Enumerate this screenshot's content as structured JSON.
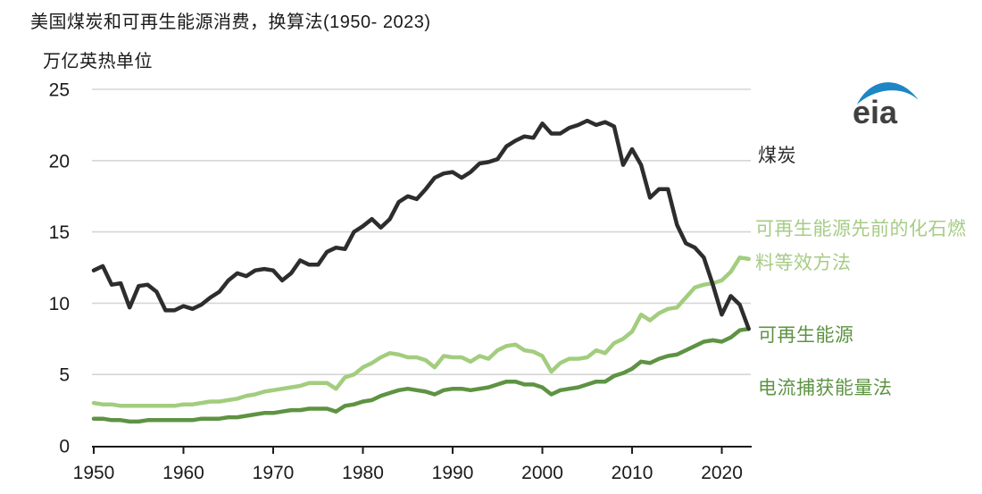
{
  "title": "美国煤炭和可再生能源消费，换算法(1950- 2023)",
  "subtitle": "万亿英热单位",
  "logo": {
    "text": "eia",
    "swoosh_color": "#1d86c4",
    "text_color": "#404040"
  },
  "annotations": {
    "coal": {
      "label": "煤炭",
      "color": "#2b2b2b"
    },
    "ffe": {
      "lines": [
        "可再生能源先前的化石燃",
        "料等效方法"
      ],
      "color": "#a6cc85"
    },
    "renewables": {
      "label": "可再生能源",
      "color": "#5d9342"
    },
    "method": {
      "label": "电流捕获能量法",
      "color": "#5d9342"
    }
  },
  "chart_data": {
    "type": "line",
    "title": "美国煤炭和可再生能源消费，换算法(1950- 2023)",
    "xlabel": "",
    "ylabel": "万亿英热单位",
    "xlim": [
      1950,
      2023
    ],
    "ylim": [
      0,
      25
    ],
    "y_ticks": [
      0,
      5,
      10,
      15,
      20,
      25
    ],
    "x_ticks": [
      1950,
      1960,
      1970,
      1980,
      1990,
      2000,
      2010,
      2020
    ],
    "grid": "horizontal",
    "legend_position": "right-annotations",
    "x": [
      1950,
      1951,
      1952,
      1953,
      1954,
      1955,
      1956,
      1957,
      1958,
      1959,
      1960,
      1961,
      1962,
      1963,
      1964,
      1965,
      1966,
      1967,
      1968,
      1969,
      1970,
      1971,
      1972,
      1973,
      1974,
      1975,
      1976,
      1977,
      1978,
      1979,
      1980,
      1981,
      1982,
      1983,
      1984,
      1985,
      1986,
      1987,
      1988,
      1989,
      1990,
      1991,
      1992,
      1993,
      1994,
      1995,
      1996,
      1997,
      1998,
      1999,
      2000,
      2001,
      2002,
      2003,
      2004,
      2005,
      2006,
      2007,
      2008,
      2009,
      2010,
      2011,
      2012,
      2013,
      2014,
      2015,
      2016,
      2017,
      2018,
      2019,
      2020,
      2021,
      2022,
      2023
    ],
    "series": [
      {
        "name": "煤炭",
        "color": "#2d2d2d",
        "stroke_width": 4.5,
        "values": [
          12.3,
          12.6,
          11.3,
          11.4,
          9.7,
          11.2,
          11.3,
          10.8,
          9.5,
          9.5,
          9.8,
          9.6,
          9.9,
          10.4,
          10.8,
          11.6,
          12.1,
          11.9,
          12.3,
          12.4,
          12.3,
          11.6,
          12.1,
          13.0,
          12.7,
          12.7,
          13.6,
          13.9,
          13.8,
          15.0,
          15.4,
          15.9,
          15.3,
          15.9,
          17.1,
          17.5,
          17.3,
          18.0,
          18.8,
          19.1,
          19.2,
          18.8,
          19.2,
          19.8,
          19.9,
          20.1,
          21.0,
          21.4,
          21.7,
          21.6,
          22.6,
          21.9,
          21.9,
          22.3,
          22.5,
          22.8,
          22.5,
          22.7,
          22.4,
          19.7,
          20.8,
          19.7,
          17.4,
          18.0,
          18.0,
          15.5,
          14.2,
          13.9,
          13.2,
          11.3,
          9.2,
          10.5,
          9.9,
          8.2
        ]
      },
      {
        "name": "可再生能源先前的化石燃料等效方法",
        "color": "#a2cd7e",
        "stroke_width": 4.5,
        "values": [
          3.0,
          2.9,
          2.9,
          2.8,
          2.8,
          2.8,
          2.8,
          2.8,
          2.8,
          2.8,
          2.9,
          2.9,
          3.0,
          3.1,
          3.1,
          3.2,
          3.3,
          3.5,
          3.6,
          3.8,
          3.9,
          4.0,
          4.1,
          4.2,
          4.4,
          4.4,
          4.4,
          4.0,
          4.8,
          5.0,
          5.5,
          5.8,
          6.2,
          6.5,
          6.4,
          6.2,
          6.2,
          6.0,
          5.5,
          6.3,
          6.2,
          6.2,
          5.9,
          6.3,
          6.1,
          6.7,
          7.0,
          7.1,
          6.7,
          6.6,
          6.3,
          5.2,
          5.8,
          6.1,
          6.1,
          6.2,
          6.7,
          6.5,
          7.2,
          7.5,
          8.0,
          9.2,
          8.8,
          9.3,
          9.6,
          9.7,
          10.4,
          11.1,
          11.3,
          11.4,
          11.6,
          12.2,
          13.2,
          13.1
        ]
      },
      {
        "name": "可再生能源 电流捕获能量法",
        "color": "#5d9342",
        "stroke_width": 4.5,
        "values": [
          1.9,
          1.9,
          1.8,
          1.8,
          1.7,
          1.7,
          1.8,
          1.8,
          1.8,
          1.8,
          1.8,
          1.8,
          1.9,
          1.9,
          1.9,
          2.0,
          2.0,
          2.1,
          2.2,
          2.3,
          2.3,
          2.4,
          2.5,
          2.5,
          2.6,
          2.6,
          2.6,
          2.4,
          2.8,
          2.9,
          3.1,
          3.2,
          3.5,
          3.7,
          3.9,
          4.0,
          3.9,
          3.8,
          3.6,
          3.9,
          4.0,
          4.0,
          3.9,
          4.0,
          4.1,
          4.3,
          4.5,
          4.5,
          4.3,
          4.3,
          4.1,
          3.6,
          3.9,
          4.0,
          4.1,
          4.3,
          4.5,
          4.5,
          4.9,
          5.1,
          5.4,
          5.9,
          5.8,
          6.1,
          6.3,
          6.4,
          6.7,
          7.0,
          7.3,
          7.4,
          7.3,
          7.6,
          8.1,
          8.2
        ]
      }
    ],
    "style": {
      "gridline_color": "#d6d6d6",
      "axis_color": "#1a1a1a",
      "tick_label_color": "#1a1a1a",
      "tick_label_size": 21
    }
  }
}
